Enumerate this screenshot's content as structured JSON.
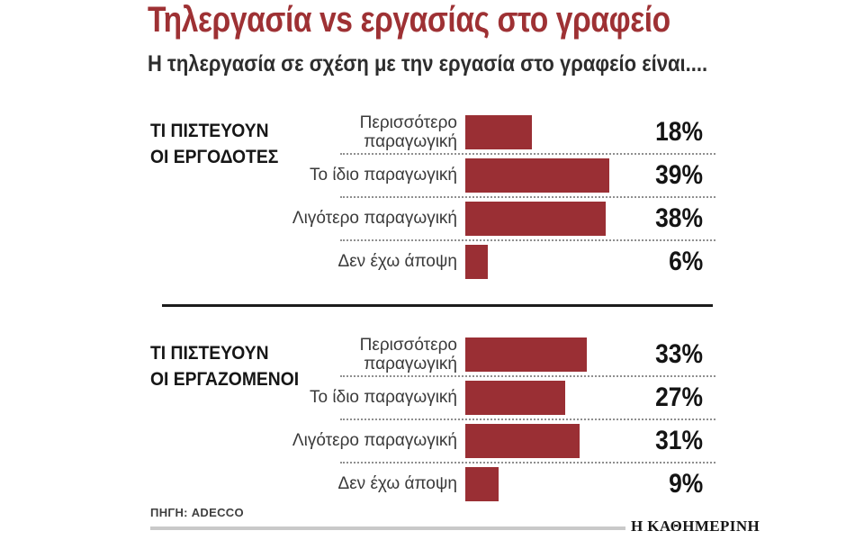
{
  "title": "Τηλεργασία vs εργασίας στο γραφείο",
  "subtitle": "Η τηλεργασία σε σχέση με την εργασία στο γραφείο είναι....",
  "source": "ΠΗΓΗ: ADECCO",
  "brand": "Η ΚΑΘΗΜΕΡΙΝΗ",
  "colors": {
    "bar": "#9a2f34",
    "title": "#9e3134",
    "divider": "#1c1c1c",
    "dotted_separator": "#8f8f8f",
    "brand_rule": "#c9c9c9"
  },
  "chart_data": {
    "type": "bar",
    "orientation": "horizontal",
    "unit": "%",
    "title": "Τηλεργασία vs εργασίας στο γραφείο",
    "subtitle": "Η τηλεργασία σε σχέση με την εργασία στο γραφείο είναι....",
    "categories": [
      "Περισσότερο παραγωγική",
      "Το ίδιο παραγωγική",
      "Λιγότερο παραγωγική",
      "Δεν έχω άποψη"
    ],
    "series": [
      {
        "name": "ΤΙ ΠΙΣΤΕΥΟΥΝ ΟΙ ΕΡΓΟΔΟΤΕΣ",
        "values": [
          18,
          39,
          38,
          6
        ]
      },
      {
        "name": "ΤΙ ΠΙΣΤΕΥΟΥΝ ΟΙ ΕΡΓΑΖΟΜΕΝΟΙ",
        "values": [
          33,
          27,
          31,
          9
        ]
      }
    ],
    "xlim": [
      0,
      100
    ],
    "grid": false,
    "legend": false,
    "source": "ΠΗΓΗ: ADECCO"
  },
  "sections": [
    {
      "header_line1": "ΤΙ ΠΙΣΤΕΥΟΥΝ",
      "header_line2": "ΟΙ ΕΡΓΟΔΟΤΕΣ",
      "rows": [
        {
          "label": "Περισσότερο\nπαραγωγική",
          "value": 18,
          "pct": "18%"
        },
        {
          "label": "Το ίδιο παραγωγική",
          "value": 39,
          "pct": "39%"
        },
        {
          "label": "Λιγότερο παραγωγική",
          "value": 38,
          "pct": "38%"
        },
        {
          "label": "Δεν έχω άποψη",
          "value": 6,
          "pct": "6%"
        }
      ]
    },
    {
      "header_line1": "ΤΙ ΠΙΣΤΕΥΟΥΝ",
      "header_line2": "ΟΙ ΕΡΓΑΖΟΜΕΝΟΙ",
      "rows": [
        {
          "label": "Περισσότερο\nπαραγωγική",
          "value": 33,
          "pct": "33%"
        },
        {
          "label": "Το ίδιο παραγωγική",
          "value": 27,
          "pct": "27%"
        },
        {
          "label": "Λιγότερο παραγωγική",
          "value": 31,
          "pct": "31%"
        },
        {
          "label": "Δεν έχω άποψη",
          "value": 9,
          "pct": "9%"
        }
      ]
    }
  ]
}
